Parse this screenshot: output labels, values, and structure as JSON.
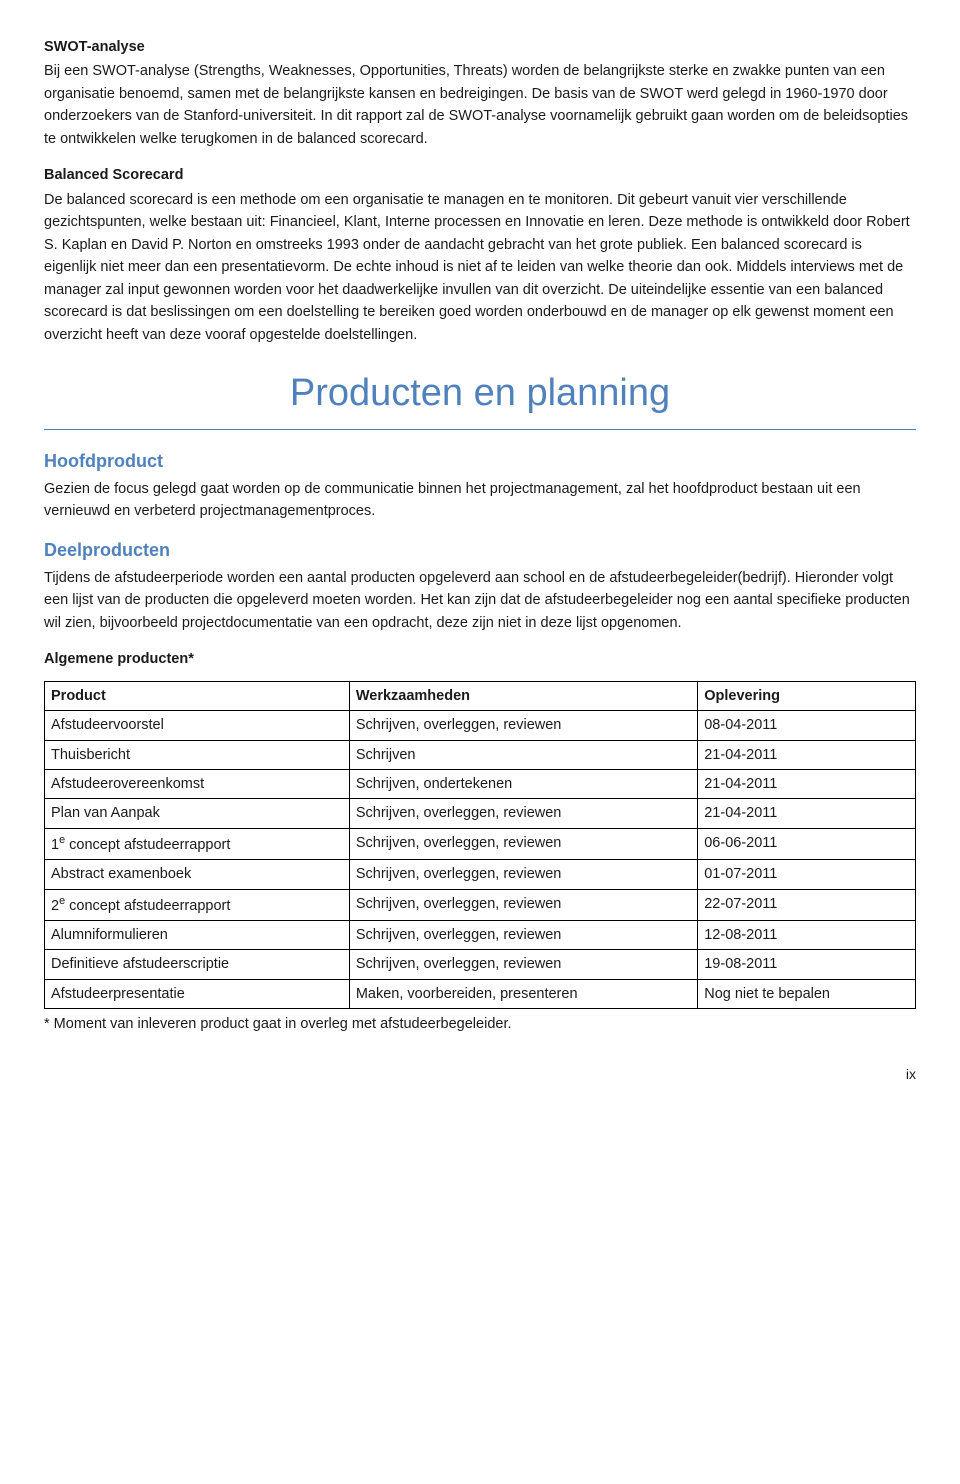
{
  "swot": {
    "title": "SWOT-analyse",
    "body": "Bij een SWOT-analyse (Strengths, Weaknesses, Opportunities, Threats) worden de belangrijkste sterke en zwakke punten van een organisatie benoemd, samen met de belangrijkste kansen en bedreigingen. De basis van de SWOT werd gelegd in 1960-1970 door onderzoekers van de Stanford-universiteit. In dit rapport zal de SWOT-analyse voornamelijk gebruikt gaan worden om de beleidsopties te ontwikkelen welke terugkomen in de balanced scorecard."
  },
  "bsc": {
    "title": "Balanced Scorecard",
    "body": "De balanced scorecard is een methode om een organisatie te managen en te monitoren. Dit gebeurt vanuit vier verschillende gezichtspunten, welke bestaan uit: Financieel, Klant, Interne processen en Innovatie en leren. Deze methode is ontwikkeld door Robert S. Kaplan en David P. Norton en omstreeks 1993 onder de aandacht gebracht van het grote publiek. Een balanced scorecard is eigenlijk niet meer dan een presentatievorm. De echte inhoud is niet af te leiden van welke theorie dan ook. Middels interviews met de manager zal input gewonnen worden voor het daadwerkelijke invullen van dit overzicht. De uiteindelijke essentie van een balanced scorecard is dat beslissingen om een doelstelling te bereiken goed worden onderbouwd en de manager op elk gewenst moment een overzicht heeft van deze vooraf opgestelde doelstellingen."
  },
  "main_heading": "Producten en planning",
  "hoofd": {
    "title": "Hoofdproduct",
    "body": "Gezien de focus gelegd gaat worden op de communicatie binnen het projectmanagement, zal het hoofdproduct bestaan uit een vernieuwd en verbeterd projectmanagementproces."
  },
  "deel": {
    "title": "Deelproducten",
    "body": "Tijdens de afstudeerperiode worden een aantal producten opgeleverd aan school en de afstudeerbegeleider(bedrijf). Hieronder volgt een lijst van de producten die opgeleverd moeten worden. Het kan zijn dat de afstudeerbegeleider nog een aantal specifieke producten wil zien, bijvoorbeeld projectdocumentatie van een opdracht, deze zijn niet in deze lijst opgenomen."
  },
  "table_title": "Algemene producten*",
  "table": {
    "headers": {
      "product": "Product",
      "werk": "Werkzaamheden",
      "oplevering": "Oplevering"
    },
    "rows": [
      {
        "product": "Afstudeervoorstel",
        "werk": "Schrijven, overleggen, reviewen",
        "op": "08-04-2011"
      },
      {
        "product": "Thuisbericht",
        "werk": "Schrijven",
        "op": "21-04-2011"
      },
      {
        "product": "Afstudeerovereenkomst",
        "werk": "Schrijven, ondertekenen",
        "op": "21-04-2011"
      },
      {
        "product": "Plan van Aanpak",
        "werk": "Schrijven, overleggen, reviewen",
        "op": "21-04-2011"
      },
      {
        "product": "1e concept afstudeerrapport",
        "sup": true,
        "werk": "Schrijven, overleggen, reviewen",
        "op": "06-06-2011"
      },
      {
        "product": "Abstract examenboek",
        "werk": "Schrijven, overleggen, reviewen",
        "op": "01-07-2011"
      },
      {
        "product": "2e concept afstudeerrapport",
        "sup": true,
        "werk": "Schrijven, overleggen, reviewen",
        "op": "22-07-2011"
      },
      {
        "product": "Alumniformulieren",
        "werk": "Schrijven, overleggen, reviewen",
        "op": "12-08-2011"
      },
      {
        "product": "Definitieve afstudeerscriptie",
        "werk": "Schrijven, overleggen, reviewen",
        "op": "19-08-2011"
      },
      {
        "product": "Afstudeerpresentatie",
        "werk": "Maken, voorbereiden, presenteren",
        "op": "Nog niet te bepalen"
      }
    ]
  },
  "footnote": "* Moment van inleveren product gaat in overleg met afstudeerbegeleider.",
  "page_number": "ix",
  "colors": {
    "accent": "#4f81bd"
  }
}
